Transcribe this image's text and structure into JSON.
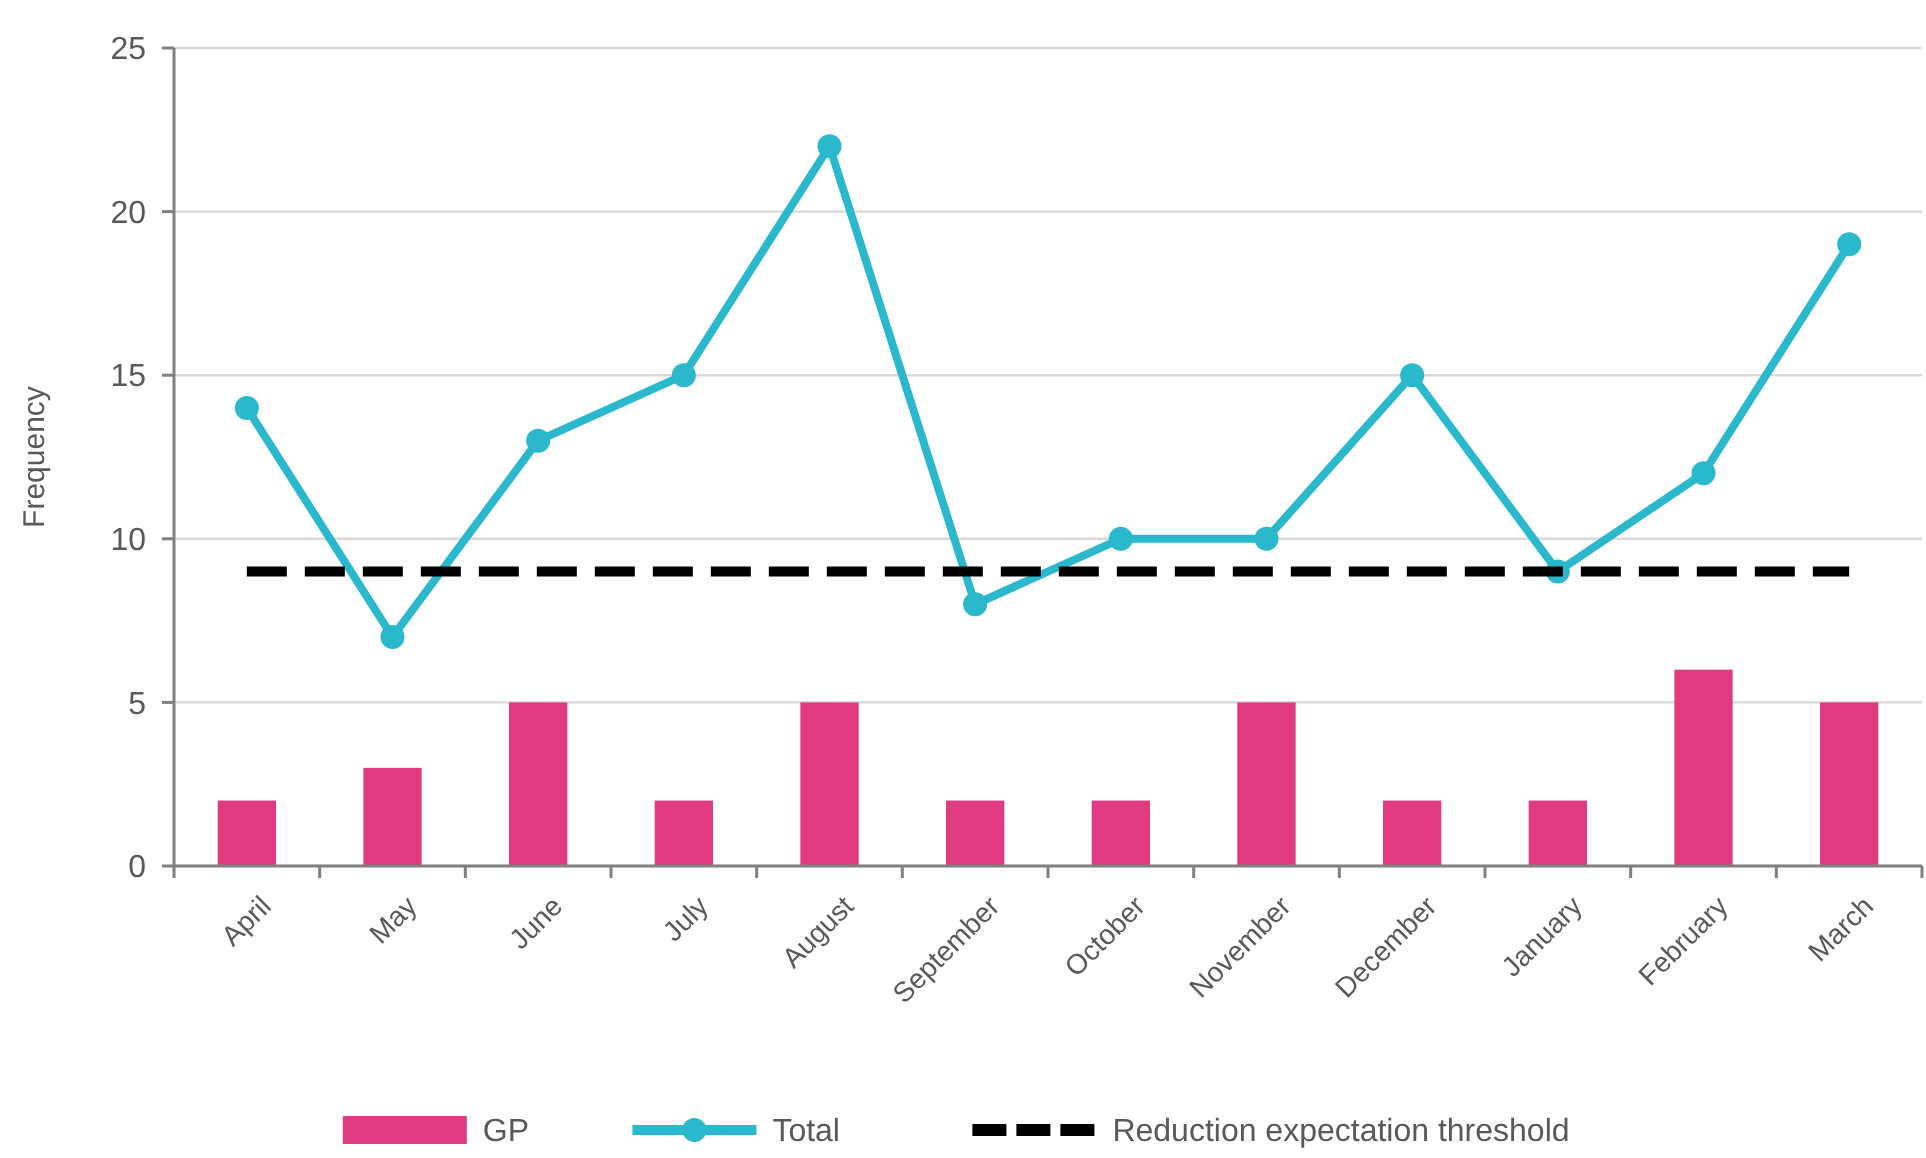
{
  "chart_data": {
    "type": "bar",
    "ylabel": "Frequency",
    "categories": [
      "April",
      "May",
      "June",
      "July",
      "August",
      "September",
      "October",
      "November",
      "December",
      "January",
      "February",
      "March"
    ],
    "series": [
      {
        "name": "GP",
        "color": "#e03a80",
        "values": [
          2,
          3,
          5,
          2,
          5,
          2,
          2,
          5,
          2,
          2,
          6,
          5
        ]
      },
      {
        "name": "Total",
        "type": "line",
        "color": "#29b8cc",
        "marker": "circle",
        "line_style": "solid",
        "values": [
          14,
          7,
          13,
          15,
          22,
          8,
          10,
          10,
          15,
          9,
          12,
          19
        ]
      },
      {
        "name": "Reduction expectation threshold",
        "type": "line",
        "color": "#000000",
        "marker": "none",
        "line_style": "dashed",
        "values": [
          9,
          9,
          9,
          9,
          9,
          9,
          9,
          9,
          9,
          9,
          9,
          9
        ]
      }
    ],
    "ylim": [
      0,
      25
    ],
    "yticks": [
      0,
      5,
      10,
      15,
      20,
      25
    ],
    "grid": "y",
    "legend": "bottom"
  }
}
